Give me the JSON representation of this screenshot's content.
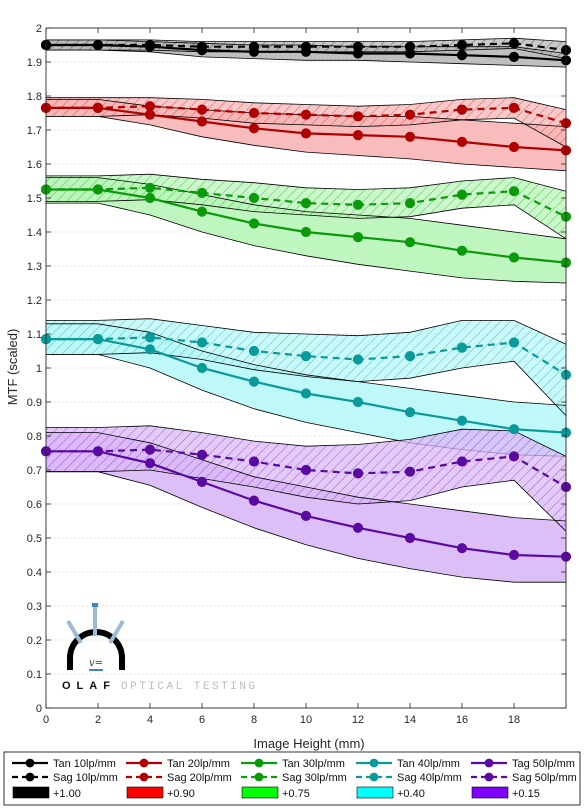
{
  "chart_data": {
    "type": "line",
    "title": "",
    "xlabel": "Image Height (mm)",
    "ylabel": "MTF (scaled)",
    "xlim": [
      0,
      20
    ],
    "ylim": [
      0,
      2
    ],
    "xticks": [
      0,
      2,
      4,
      6,
      8,
      10,
      12,
      14,
      16,
      18
    ],
    "yticks": [
      0,
      0.1,
      0.2,
      0.3,
      0.4,
      0.5,
      0.6,
      0.7,
      0.8,
      0.9,
      1,
      1.1,
      1.2,
      1.3,
      1.4,
      1.5,
      1.6,
      1.7,
      1.8,
      1.9,
      2
    ],
    "grid": "horizontal",
    "x": [
      0,
      2,
      4,
      6,
      8,
      10,
      12,
      14,
      16,
      18,
      20
    ],
    "series": [
      {
        "name": "Tan 10lp/mm",
        "style": "solid",
        "color": "#000000",
        "values": [
          1.95,
          1.95,
          1.945,
          1.935,
          1.93,
          1.93,
          1.925,
          1.925,
          1.92,
          1.915,
          1.905
        ]
      },
      {
        "name": "Tan 20lp/mm",
        "style": "solid",
        "color": "#b00000",
        "values": [
          1.765,
          1.765,
          1.745,
          1.725,
          1.705,
          1.69,
          1.685,
          1.68,
          1.665,
          1.65,
          1.64
        ]
      },
      {
        "name": "Tan 30lp/mm",
        "style": "solid",
        "color": "#0a9a0a",
        "values": [
          1.525,
          1.525,
          1.5,
          1.46,
          1.425,
          1.4,
          1.385,
          1.37,
          1.345,
          1.325,
          1.31
        ]
      },
      {
        "name": "Tan 40lp/mm",
        "style": "solid",
        "color": "#0a9a9a",
        "values": [
          1.085,
          1.085,
          1.055,
          1.0,
          0.96,
          0.925,
          0.9,
          0.87,
          0.845,
          0.82,
          0.81
        ]
      },
      {
        "name": "Tag 50lp/mm",
        "style": "solid",
        "color": "#5a0aa0",
        "values": [
          0.755,
          0.755,
          0.72,
          0.665,
          0.61,
          0.565,
          0.53,
          0.5,
          0.47,
          0.45,
          0.445
        ]
      },
      {
        "name": "Sag 10lp/mm",
        "style": "dashed",
        "color": "#000000",
        "values": [
          1.95,
          1.95,
          1.95,
          1.945,
          1.945,
          1.945,
          1.945,
          1.945,
          1.95,
          1.955,
          1.935
        ]
      },
      {
        "name": "Sag 20lp/mm",
        "style": "dashed",
        "color": "#b00000",
        "values": [
          1.765,
          1.765,
          1.77,
          1.76,
          1.75,
          1.745,
          1.74,
          1.745,
          1.76,
          1.765,
          1.72
        ]
      },
      {
        "name": "Sag 30lp/mm",
        "style": "dashed",
        "color": "#0a9a0a",
        "values": [
          1.525,
          1.525,
          1.53,
          1.515,
          1.5,
          1.485,
          1.48,
          1.485,
          1.51,
          1.52,
          1.445
        ]
      },
      {
        "name": "Sag 40lp/mm",
        "style": "dashed",
        "color": "#0a9a9a",
        "values": [
          1.085,
          1.085,
          1.09,
          1.075,
          1.05,
          1.035,
          1.025,
          1.035,
          1.06,
          1.075,
          0.98
        ]
      },
      {
        "name": "Sag 50lp/mm",
        "style": "dashed",
        "color": "#5a0aa0",
        "values": [
          0.755,
          0.755,
          0.76,
          0.745,
          0.725,
          0.7,
          0.69,
          0.695,
          0.725,
          0.74,
          0.65
        ]
      }
    ],
    "bands": [
      {
        "name": "+1.00",
        "color": "#000000",
        "fill": "#b8b8b8",
        "hatch": true,
        "tan_upper": [
          1.965,
          1.965,
          1.96,
          1.955,
          1.95,
          1.95,
          1.945,
          1.945,
          1.945,
          1.945,
          1.925
        ],
        "tan_lower": [
          1.935,
          1.935,
          1.93,
          1.915,
          1.91,
          1.905,
          1.905,
          1.9,
          1.895,
          1.89,
          1.885
        ],
        "sag_upper": [
          1.965,
          1.965,
          1.965,
          1.96,
          1.96,
          1.96,
          1.96,
          1.96,
          1.965,
          1.97,
          1.96
        ],
        "sag_lower": [
          1.935,
          1.935,
          1.935,
          1.93,
          1.93,
          1.93,
          1.93,
          1.93,
          1.935,
          1.94,
          1.91
        ]
      },
      {
        "name": "+0.90",
        "color": "#ff0000",
        "fill": "#f7b5b5",
        "hatch": true,
        "tan_upper": [
          1.79,
          1.79,
          1.77,
          1.76,
          1.75,
          1.745,
          1.74,
          1.74,
          1.73,
          1.72,
          1.71
        ],
        "tan_lower": [
          1.74,
          1.74,
          1.715,
          1.68,
          1.655,
          1.635,
          1.625,
          1.615,
          1.6,
          1.59,
          1.58
        ],
        "sag_upper": [
          1.795,
          1.795,
          1.795,
          1.79,
          1.78,
          1.775,
          1.77,
          1.775,
          1.79,
          1.795,
          1.76
        ],
        "sag_lower": [
          1.74,
          1.74,
          1.745,
          1.735,
          1.72,
          1.715,
          1.71,
          1.715,
          1.73,
          1.735,
          1.65
        ]
      },
      {
        "name": "+0.75",
        "color": "#00ff00",
        "fill": "#b8f5b8",
        "hatch": true,
        "tan_upper": [
          1.56,
          1.56,
          1.54,
          1.51,
          1.48,
          1.46,
          1.45,
          1.44,
          1.42,
          1.4,
          1.38
        ],
        "tan_lower": [
          1.485,
          1.485,
          1.45,
          1.4,
          1.36,
          1.33,
          1.305,
          1.285,
          1.265,
          1.255,
          1.25
        ],
        "sag_upper": [
          1.565,
          1.565,
          1.57,
          1.555,
          1.545,
          1.53,
          1.525,
          1.53,
          1.55,
          1.56,
          1.52
        ],
        "sag_lower": [
          1.49,
          1.49,
          1.495,
          1.48,
          1.46,
          1.45,
          1.44,
          1.445,
          1.47,
          1.48,
          1.38
        ]
      },
      {
        "name": "+0.40",
        "color": "#00ffff",
        "fill": "#b8f7f7",
        "hatch": true,
        "tan_upper": [
          1.13,
          1.13,
          1.105,
          1.05,
          1.01,
          0.98,
          0.96,
          0.94,
          0.92,
          0.9,
          0.89
        ],
        "tan_lower": [
          1.04,
          1.04,
          1.0,
          0.935,
          0.88,
          0.84,
          0.81,
          0.78,
          0.76,
          0.745,
          0.74
        ],
        "sag_upper": [
          1.14,
          1.14,
          1.145,
          1.125,
          1.105,
          1.1,
          1.095,
          1.105,
          1.14,
          1.14,
          1.07
        ],
        "sag_lower": [
          1.04,
          1.04,
          1.045,
          1.025,
          0.995,
          0.975,
          0.96,
          0.97,
          1.0,
          1.02,
          0.86
        ]
      },
      {
        "name": "+0.15",
        "color": "#8000ff",
        "fill": "#d9b8f7",
        "hatch": true,
        "tan_upper": [
          0.81,
          0.81,
          0.78,
          0.73,
          0.68,
          0.65,
          0.62,
          0.6,
          0.58,
          0.56,
          0.55
        ],
        "tan_lower": [
          0.695,
          0.695,
          0.655,
          0.59,
          0.53,
          0.48,
          0.44,
          0.41,
          0.385,
          0.37,
          0.37
        ],
        "sag_upper": [
          0.825,
          0.825,
          0.83,
          0.81,
          0.785,
          0.77,
          0.775,
          0.79,
          0.82,
          0.815,
          0.74
        ],
        "sag_lower": [
          0.695,
          0.695,
          0.7,
          0.675,
          0.65,
          0.62,
          0.6,
          0.61,
          0.65,
          0.67,
          0.52
        ]
      }
    ],
    "legend_placement": "bottom"
  },
  "logo": {
    "brand": "OLAF",
    "subtitle": "OPTICAL TESTING",
    "badge": "v="
  }
}
